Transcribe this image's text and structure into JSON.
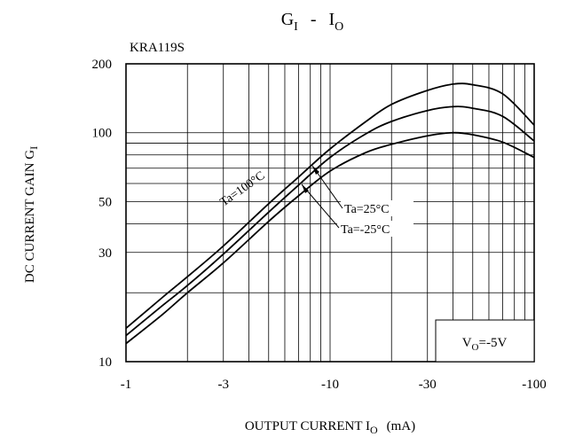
{
  "chart_data": {
    "type": "line",
    "title": {
      "main": "G",
      "main_sub": "I",
      "sep": "-",
      "rhs": "I",
      "rhs_sub": "O"
    },
    "part_label": "KRA119S",
    "xlabel": {
      "main": "OUTPUT CURRENT I",
      "sub": "O",
      "unit": "(mA)"
    },
    "ylabel": {
      "main": "DC CURRENT GAIN G",
      "sub": "I"
    },
    "x_scale": "log",
    "y_scale": "log",
    "xlim": [
      -1,
      -100
    ],
    "ylim": [
      10,
      200
    ],
    "x_ticks": [
      {
        "value": -1,
        "label": "-1"
      },
      {
        "value": -3,
        "label": "-3"
      },
      {
        "value": -10,
        "label": "-10"
      },
      {
        "value": -30,
        "label": "-30"
      },
      {
        "value": -100,
        "label": "-100"
      }
    ],
    "y_ticks": [
      {
        "value": 10,
        "label": "10"
      },
      {
        "value": 30,
        "label": "30"
      },
      {
        "value": 50,
        "label": "50"
      },
      {
        "value": 100,
        "label": "100"
      },
      {
        "value": 200,
        "label": "200"
      }
    ],
    "grid": true,
    "condition": {
      "main": "V",
      "sub": "O",
      "rest": "=-5V"
    },
    "series": [
      {
        "name": "Ta=100°C",
        "x": [
          -1,
          -1.5,
          -2,
          -3,
          -5,
          -7,
          -10,
          -15,
          -20,
          -30,
          -40,
          -50,
          -70,
          -100
        ],
        "y": [
          14,
          19,
          23.5,
          32,
          49,
          64,
          85,
          112,
          133,
          153,
          163,
          162,
          148,
          108
        ]
      },
      {
        "name": "Ta=25°C",
        "x": [
          -1,
          -1.5,
          -2,
          -3,
          -5,
          -7,
          -10,
          -15,
          -20,
          -30,
          -40,
          -50,
          -70,
          -100
        ],
        "y": [
          13,
          17.5,
          21.5,
          29.5,
          45,
          59,
          78,
          99,
          112,
          125,
          130,
          128,
          118,
          92
        ]
      },
      {
        "name": "Ta=-25°C",
        "x": [
          -1,
          -1.5,
          -2,
          -3,
          -5,
          -7,
          -10,
          -15,
          -20,
          -30,
          -40,
          -50,
          -70,
          -100
        ],
        "y": [
          12,
          16,
          20,
          27,
          41,
          53,
          68,
          82,
          89,
          97,
          100,
          98,
          91,
          78
        ]
      }
    ]
  }
}
